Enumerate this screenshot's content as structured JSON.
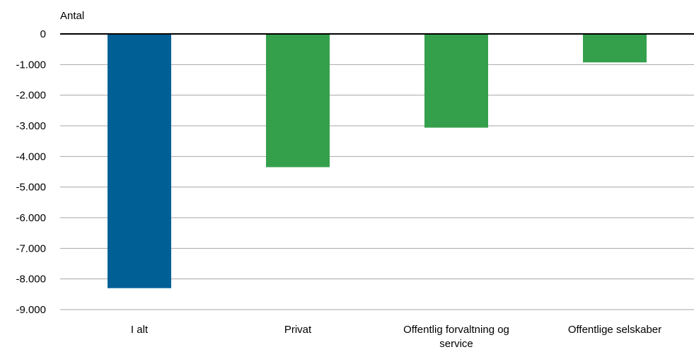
{
  "chart_data": {
    "type": "bar",
    "ylabel": "Antal",
    "categories": [
      "I alt",
      "Privat",
      "Offentlig forvaltning og service",
      "Offentlige selskaber"
    ],
    "category_label_lines": [
      [
        "I alt"
      ],
      [
        "Privat"
      ],
      [
        "Offentlig forvaltning og",
        "service"
      ],
      [
        "Offentlige selskaber"
      ]
    ],
    "values": [
      -8300,
      -4350,
      -3060,
      -930
    ],
    "bar_colors": [
      "#006096",
      "#35a04c",
      "#35a04c",
      "#35a04c"
    ],
    "ylim": [
      -9000,
      0
    ],
    "yticks": [
      0,
      -1000,
      -2000,
      -3000,
      -4000,
      -5000,
      -6000,
      -7000,
      -8000,
      -9000
    ],
    "ytick_labels": [
      "0",
      "-1.000",
      "-2.000",
      "-3.000",
      "-4.000",
      "-5.000",
      "-6.000",
      "-7.000",
      "-8.000",
      "-9.000"
    ],
    "grid": true,
    "legend": "none"
  }
}
